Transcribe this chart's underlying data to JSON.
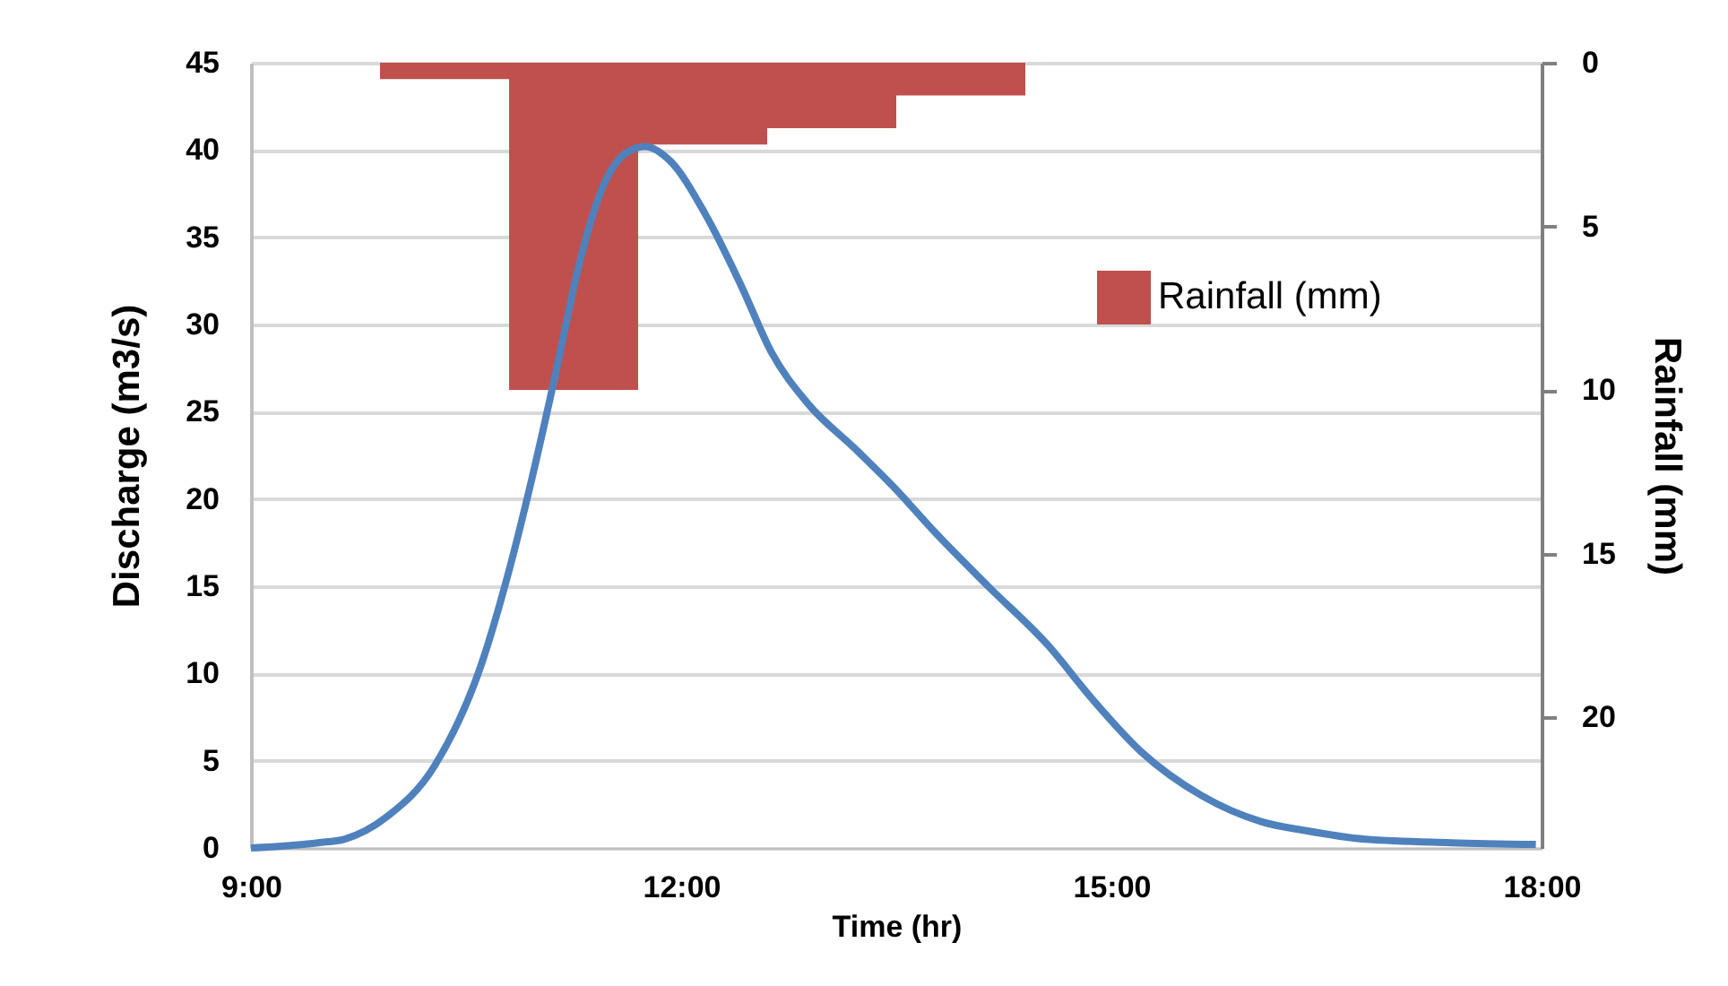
{
  "chart_data": {
    "type": "line",
    "xlabel": "Time (hr)",
    "ylabel": "Discharge (m3/s)",
    "y2label": "Rainfall (mm)",
    "xlim": [
      9,
      18
    ],
    "xticks": [
      {
        "value": 9,
        "label": "9:00"
      },
      {
        "value": 12,
        "label": "12:00"
      },
      {
        "value": 15,
        "label": "15:00"
      },
      {
        "value": 18,
        "label": "18:00"
      }
    ],
    "ylim": [
      0,
      45
    ],
    "yticks": [
      0,
      5,
      10,
      15,
      20,
      25,
      30,
      35,
      40,
      45
    ],
    "y2lim": [
      24,
      0
    ],
    "y2ticks": [
      0,
      5,
      10,
      15,
      20
    ],
    "grid": "y",
    "legend": "right",
    "line_style": "solid",
    "series": [
      {
        "type": "bar",
        "axis": "y2",
        "name": "Rainfall (mm)",
        "color": "#c0504d",
        "x": [
          10.35,
          11.25,
          12.15,
          13.05,
          13.95
        ],
        "values": [
          0.5,
          10,
          2.5,
          2,
          1
        ]
      },
      {
        "color": "#4f81bd",
        "x": [
          9.0,
          9.47,
          9.65,
          9.95,
          10.28,
          10.61,
          10.79,
          10.96,
          11.13,
          11.29,
          11.46,
          11.63,
          11.75,
          11.92,
          12.17,
          12.42,
          12.63,
          12.88,
          13.21,
          13.48,
          13.78,
          14.14,
          14.56,
          14.86,
          15.21,
          15.63,
          16.05,
          16.35,
          16.77,
          17.37,
          17.96
        ],
        "values": [
          0,
          0.3,
          0.5,
          1.8,
          4.7,
          10.6,
          15.6,
          21.2,
          27.4,
          33.5,
          38.0,
          39.9,
          40.2,
          39.4,
          36.3,
          32.2,
          28.4,
          25.5,
          22.9,
          20.7,
          18.0,
          15.0,
          11.6,
          8.6,
          5.5,
          3.0,
          1.5,
          1.0,
          0.5,
          0.3,
          0.2
        ]
      }
    ]
  }
}
